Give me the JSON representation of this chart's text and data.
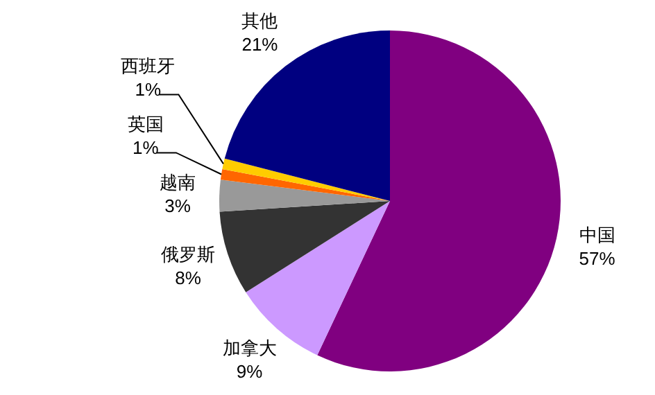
{
  "chart_data": {
    "type": "pie",
    "categories": [
      "中国",
      "加拿大",
      "俄罗斯",
      "越南",
      "英国",
      "西班牙",
      "其他"
    ],
    "values": [
      57,
      9,
      8,
      3,
      1,
      1,
      21
    ],
    "value_labels": [
      "57%",
      "9%",
      "8%",
      "3%",
      "1%",
      "1%",
      "21%"
    ],
    "colors": [
      "#800080",
      "#cc99ff",
      "#333333",
      "#999999",
      "#ff6600",
      "#ffcc00",
      "#000080"
    ],
    "legend": false
  }
}
